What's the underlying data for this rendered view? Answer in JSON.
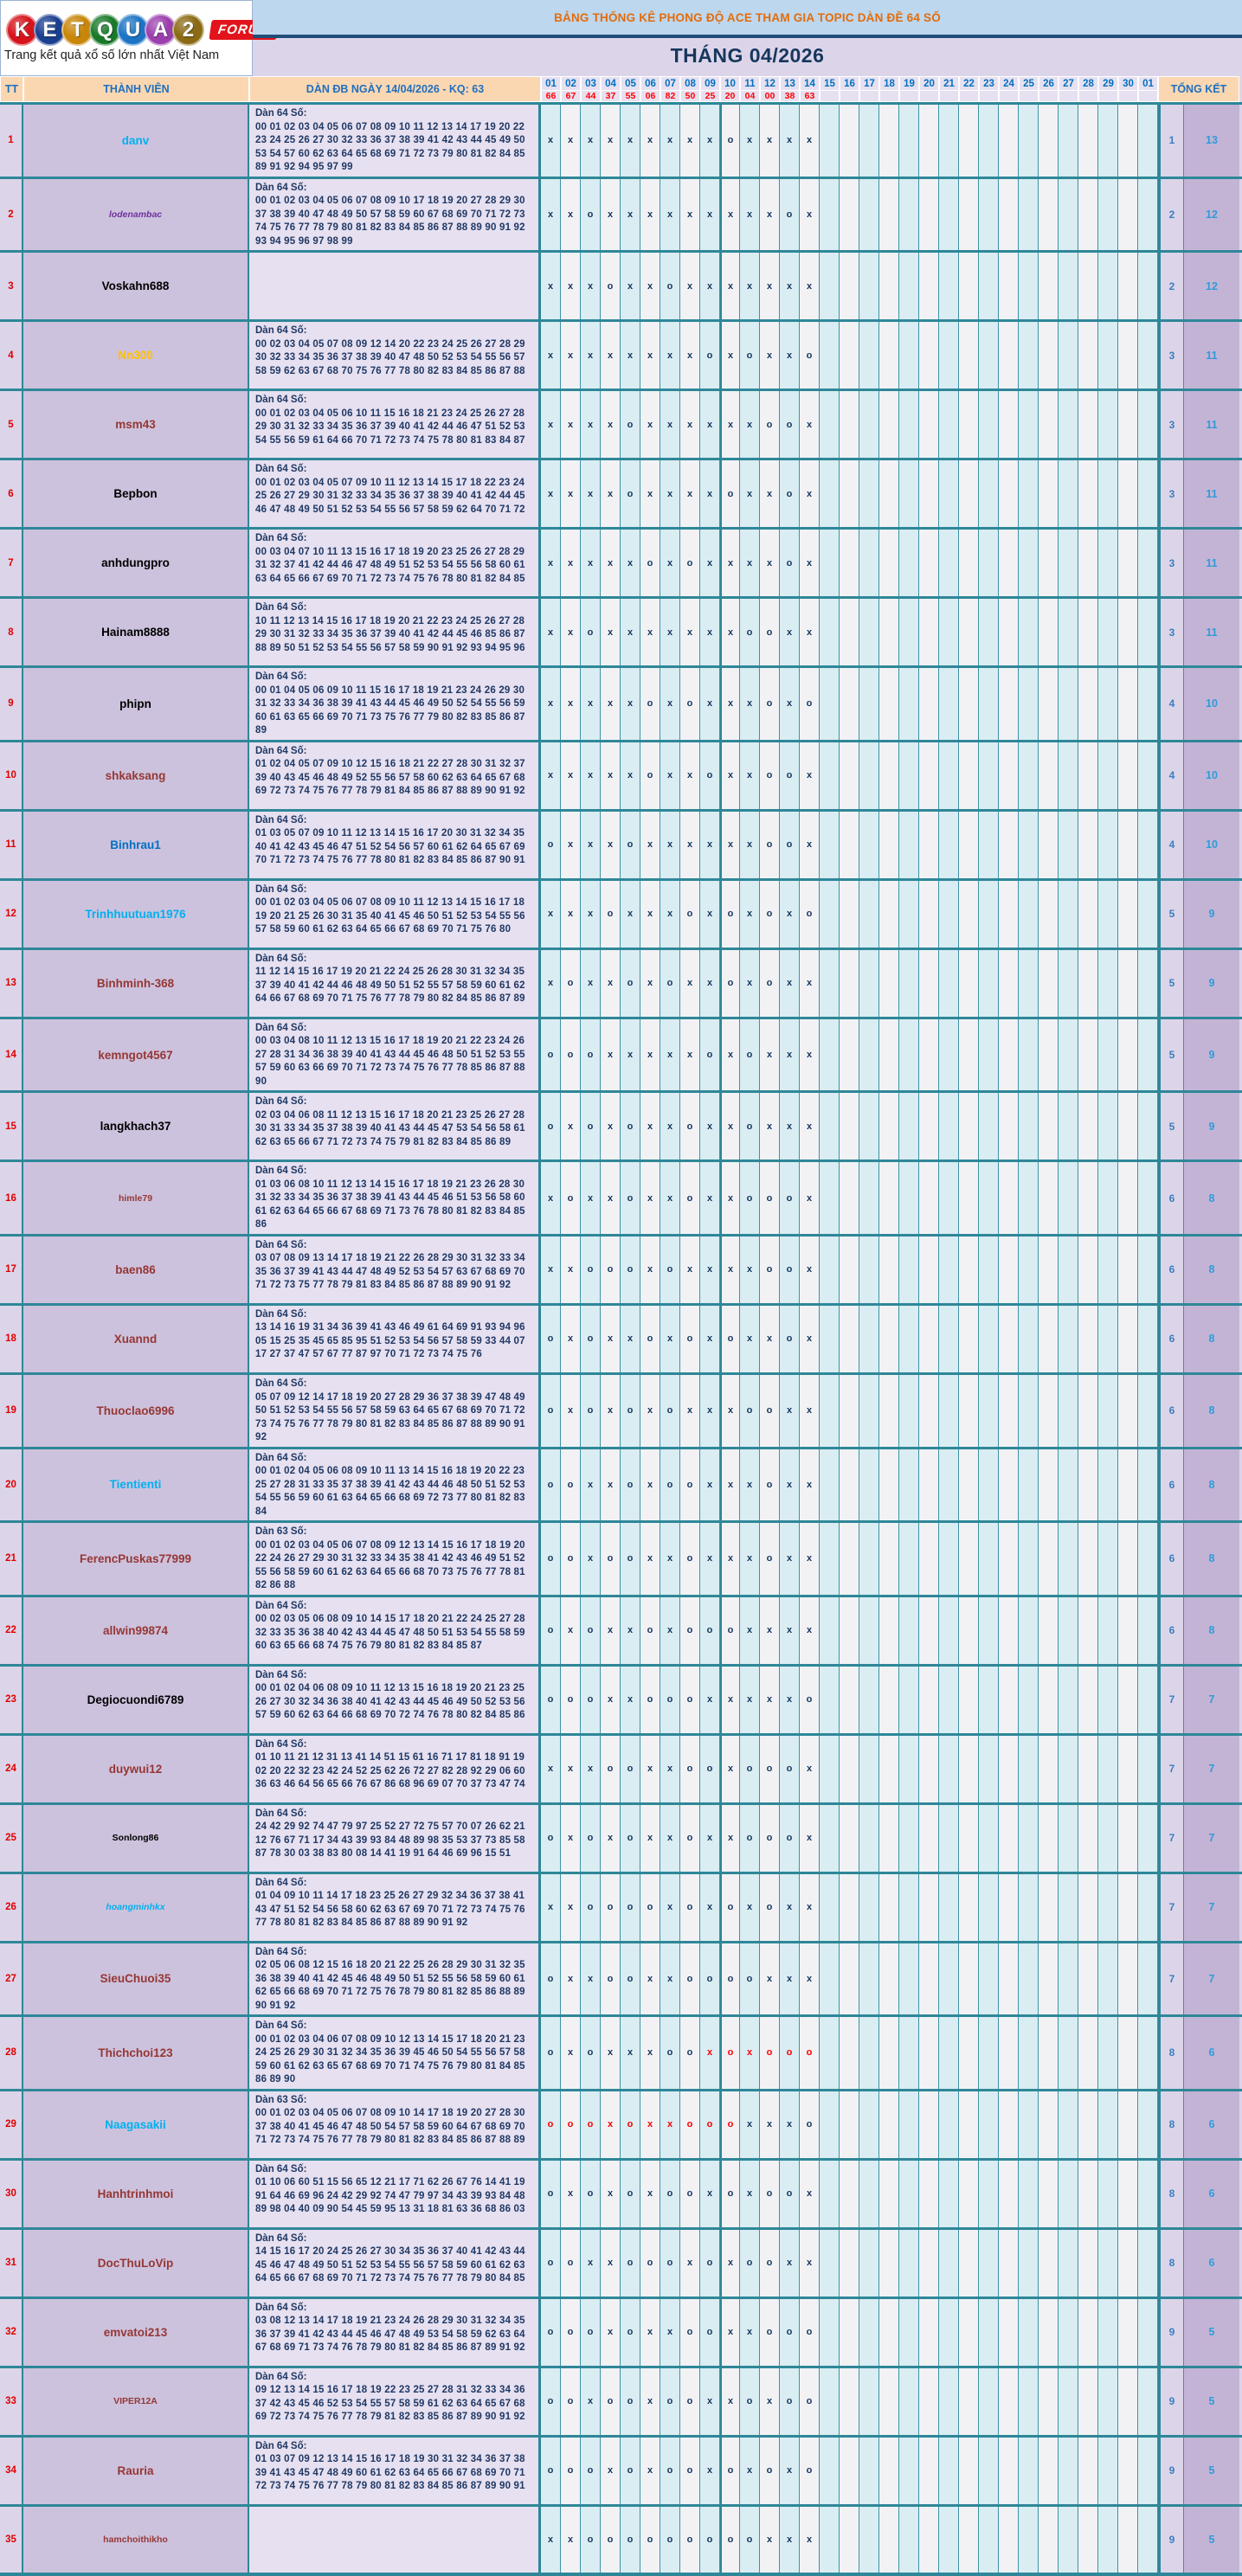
{
  "logo": {
    "letters": [
      {
        "ch": "K",
        "bg": "#d6131b"
      },
      {
        "ch": "E",
        "bg": "#1b3f8f"
      },
      {
        "ch": "T",
        "bg": "#c8860a"
      },
      {
        "ch": "Q",
        "bg": "#1a7a2a"
      },
      {
        "ch": "U",
        "bg": "#1d74c4"
      },
      {
        "ch": "A",
        "bg": "#9b3fae"
      },
      {
        "ch": "2",
        "bg": "#8a6a14"
      }
    ],
    "forum": "FORUM",
    "tagline": "Trang kết quả xổ số lớn nhất Việt Nam"
  },
  "header": {
    "title": "BẢNG THỐNG KÊ PHONG ĐỘ ACE THAM GIA TOPIC DÀN ĐỀ 64 SỐ",
    "month": "THÁNG 04/2026"
  },
  "table_header": {
    "tt": "TT",
    "member": "THÀNH VIÊN",
    "dan": "DÀN ĐB NGÀY 14/04/2026 - KQ: 63",
    "total": "TỔNG KẾT",
    "days": [
      "01",
      "02",
      "03",
      "04",
      "05",
      "06",
      "07",
      "08",
      "09",
      "10",
      "11",
      "12",
      "13",
      "14",
      "15",
      "16",
      "17",
      "18",
      "19",
      "20",
      "21",
      "22",
      "23",
      "24",
      "25",
      "26",
      "27",
      "28",
      "29",
      "30",
      "01"
    ],
    "results": [
      "66",
      "67",
      "44",
      "37",
      "55",
      "06",
      "82",
      "50",
      "25",
      "20",
      "04",
      "00",
      "38",
      "63"
    ]
  },
  "rows": [
    {
      "tt": "1",
      "name": "danv",
      "color": "#00b0f0",
      "size": "n",
      "italic": false,
      "label": "Dàn 64 Số:",
      "nums": "00 01 02 03 04 05 06 07 08 09 10 11 12 13 14 17 19 20 22 23 24 25 26 27 30 32 33 36 37 38 39 41 42 43 44 45 49 50 53 54 57 60 62 63 64 65 68 69 71 72 73 79 80 81 82 84 85 89 91 92 94 95 97 99",
      "marks": "xxxxxxxxxoxxxx",
      "miss": "1",
      "hit": "13"
    },
    {
      "tt": "2",
      "name": "lodenambac",
      "color": "#7030a0",
      "size": "s",
      "italic": true,
      "label": "Dàn 64 Số:",
      "nums": "00 01 02 03 04 05 06 07 08 09 10 17 18 19 20 27 28 29 30 37 38 39 40 47 48 49 50 57 58 59 60 67 68 69 70 71 72 73 74 75 76 77 78 79 80 81 82 83 84 85 86 87 88 89 90 91 92 93 94 95 96 97 98 99",
      "marks": "xxoxxxxxxxxxox",
      "miss": "2",
      "hit": "12"
    },
    {
      "tt": "3",
      "name": "Voskahn688",
      "color": "#000000",
      "size": "n",
      "italic": false,
      "label": "",
      "nums": "",
      "marks": "xxxoxxoxxxxxxx",
      "miss": "2",
      "hit": "12"
    },
    {
      "tt": "4",
      "name": "Nn300",
      "color": "#ffc000",
      "size": "n",
      "italic": false,
      "label": "Dàn 64 Số:",
      "nums": "00 02 03 04 05 07 08 09 12 14 20 22 23 24 25 26 27 28 29 30 32 33 34 35 36 37 38 39 40 47 48 50 52 53 54 55 56 57 58 59 62 63 67 68 70 75 76 77 78 80 82 83 84 85 86 87 88",
      "marks": "xxxxxxxxoxoxxo",
      "miss": "3",
      "hit": "11"
    },
    {
      "tt": "5",
      "name": "msm43",
      "color": "#953735",
      "size": "n",
      "italic": false,
      "label": "Dàn 64 Số:",
      "nums": "00 01 02 03 04 05 06 10 11 15 16 18 21 23 24 25 26 27 28 29 30 31 32 33 34 35 36 37 39 40 41 42 44 46 47 51 52 53 54 55 56 59 61 64 66 70 71 72 73 74 75 78 80 81 83 84 87",
      "marks": "xxxxoxxxxxxoox",
      "miss": "3",
      "hit": "11"
    },
    {
      "tt": "6",
      "name": "Bepbon",
      "color": "#000000",
      "size": "n",
      "italic": false,
      "label": "Dàn 64 Số:",
      "nums": "00 01 02 03 04 05 07 09 10 11 12 13 14 15 17 18 22 23 24 25 26 27 29 30 31 32 33 34 35 36 37 38 39 40 41 42 44 45 46 47 48 49 50 51 52 53 54 55 56 57 58 59 62 64 70 71 72",
      "marks": "xxxxoxxxxoxxox",
      "miss": "3",
      "hit": "11"
    },
    {
      "tt": "7",
      "name": "anhdungpro",
      "color": "#000000",
      "size": "n",
      "italic": false,
      "label": "Dàn 64 Số:",
      "nums": "00 03 04 07 10 11 13 15 16 17 18 19 20 23 25 26 27 28 29 31 32 37 41 42 44 46 47 48 49 51 52 53 54 55 56 58 60 61 63 64 65 66 67 69 70 71 72 73 74 75 76 78 80 81 82 84 85",
      "marks": "xxxxxoxoxxxxox",
      "miss": "3",
      "hit": "11"
    },
    {
      "tt": "8",
      "name": "Hainam8888",
      "color": "#000000",
      "size": "n",
      "italic": false,
      "label": "Dàn 64 Số:",
      "nums": "10 11 12 13 14 15 16 17 18 19 20 21 22 23 24 25 26 27 28 29 30 31 32 33 34 35 36 37 39 40 41 42 44 45 46 85 86 87 88 89 50 51 52 53 54 55 56 57 58 59 90 91 92 93 94 95 96",
      "marks": "xxoxxxxxxxooxx",
      "miss": "3",
      "hit": "11"
    },
    {
      "tt": "9",
      "name": "phipn",
      "color": "#000000",
      "size": "n",
      "italic": false,
      "label": "Dàn 64 Số:",
      "nums": "00 01 04 05 06 09 10 11 15 16 17 18 19 21 23 24 26 29 30 31 32 33 34 36 38 39 41 43 44 45 46 49 50 52 54 55 56 59 60 61 63 65 66 69 70 71 73 75 76 77 79 80 82 83 85 86 87 89",
      "marks": "xxxxxoxoxxxoxo",
      "miss": "4",
      "hit": "10"
    },
    {
      "tt": "10",
      "name": "shkaksang",
      "color": "#953735",
      "size": "n",
      "italic": false,
      "label": "Dàn 64 Số:",
      "nums": "01 02 04 05 07 09 10 12 15 16 18 21 22 27 28 30 31 32 37 39 40 43 45 46 48 49 52 55 56 57 58 60 62 63 64 65 67 68 69 72 73 74 75 76 77 78 79 81 84 85 86 87 88 89 90 91 92",
      "marks": "xxxxxoxxoxxoox",
      "miss": "4",
      "hit": "10"
    },
    {
      "tt": "11",
      "name": "Binhrau1",
      "color": "#0070c0",
      "size": "n",
      "italic": false,
      "label": "Dàn 64 Số:",
      "nums": "01 03 05 07 09 10 11 12 13 14 15 16 17 20 30 31 32 34 35 40 41 42 43 45 46 47 51 52 54 56 57 60 61 62 64 65 67 69 70 71 72 73 74 75 76 77 78 80 81 82 83 84 85 86 87 90 91",
      "marks": "oxxxoxxxxxxoox",
      "miss": "4",
      "hit": "10"
    },
    {
      "tt": "12",
      "name": "Trinhhuutuan1976",
      "color": "#00b0f0",
      "size": "n",
      "italic": false,
      "label": "Dàn 64 Số:",
      "nums": "00 01 02 03 04 05 06 07 08 09 10 11 12 13 14 15 16 17 18 19 20 21 25 26 30 31 35 40 41 45 46 50 51 52 53 54 55 56 57 58 59 60 61 62 63 64 65 66 67 68 69 70 71 75 76 80",
      "marks": "xxxoxxxoxoxoxo",
      "miss": "5",
      "hit": "9"
    },
    {
      "tt": "13",
      "name": "Binhminh-368",
      "color": "#953735",
      "size": "n",
      "italic": false,
      "label": "Dàn 64 Số:",
      "nums": "11 12 14 15 16 17 19 20 21 22 24 25 26 28 30 31 32 34 35 37 39 40 41 42 44 46 48 49 50 51 52 55 57 58 59 60 61 62 64 66 67 68 69 70 71 75 76 77 78 79 80 82 84 85 86 87 89",
      "marks": "xoxxoxoxxoxoxx",
      "miss": "5",
      "hit": "9"
    },
    {
      "tt": "14",
      "name": "kemngot4567",
      "color": "#953735",
      "size": "n",
      "italic": false,
      "label": "Dàn 64 Số:",
      "nums": "00 03 04 08 10 11 12 13 15 16 17 18 19 20 21 22 23 24 26 27 28 31 34 36 38 39 40 41 43 44 45 46 48 50 51 52 53 55 57 59 60 63 66 69 70 71 72 73 74 75 76 77 78 85 86 87 88 90",
      "marks": "oooxxxxxoxoxxx",
      "miss": "5",
      "hit": "9"
    },
    {
      "tt": "15",
      "name": "langkhach37",
      "color": "#000000",
      "size": "n",
      "italic": false,
      "label": "Dàn 64 Số:",
      "nums": "02 03 04 06 08 11 12 13 15 16 17 18 20 21 23 25 26 27 28 30 31 33 34 35 37 38 39 40 41 43 44 45 47 53 54 56 58 61 62 63 65 66 67 71 72 73 74 75 79 81 82 83 84 85 86 89",
      "marks": "oxoxoxxoxxoxxx",
      "miss": "5",
      "hit": "9"
    },
    {
      "tt": "16",
      "name": "himle79",
      "color": "#953735",
      "size": "s",
      "italic": false,
      "label": "Dàn 64 Số:",
      "nums": "01 03 06 08 10 11 12 13 14 15 16 17 18 19 21 23 26 28 30 31 32 33 34 35 36 37 38 39 41 43 44 45 46 51 53 56 58 60 61 62 63 64 65 66 67 68 69 71 73 76 78 80 81 82 83 84 85 86",
      "marks": "xoxxoxxoxxooox",
      "miss": "6",
      "hit": "8"
    },
    {
      "tt": "17",
      "name": "baen86",
      "color": "#953735",
      "size": "n",
      "italic": false,
      "label": "Dàn 64 Số:",
      "nums": "03 07 08 09 13 14 17 18 19 21 22 26 28 29 30 31 32 33 34 35 36 37 39 41 43 44 47 48 49 52 53 54 57 63 67 68 69 70 71 72 73 75 77 78 79 81 83 84 85 86 87 88 89 90 91 92",
      "marks": "xxoooxoxxxxoox",
      "miss": "6",
      "hit": "8"
    },
    {
      "tt": "18",
      "name": "Xuannd",
      "color": "#953735",
      "size": "n",
      "italic": false,
      "label": "Dàn 64 Số:",
      "nums": "13 14 16 19 31 34 36 39 41 43 46 49 61 64 69 91 93 94 96 05 15 25 35 45 65 85 95 51 52 53 54 56 57 58 59 33 44 07 17 27 37 47 57 67 77 87 97 70 71 72 73 74 75 76",
      "marks": "oxoxxoxoxoxxox",
      "miss": "6",
      "hit": "8"
    },
    {
      "tt": "19",
      "name": "Thuoclao6996",
      "color": "#953735",
      "size": "n",
      "italic": false,
      "label": "Dàn 64 Số:",
      "nums": "05 07 09 12 14 17 18 19 20 27 28 29 36 37 38 39 47 48 49 50 51 52 53 54 55 56 57 58 59 63 64 65 67 68 69 70 71 72 73 74 75 76 77 78 79 80 81 82 83 84 85 86 87 88 89 90 91 92",
      "marks": "oxoxoxoxxxooxx",
      "miss": "6",
      "hit": "8"
    },
    {
      "tt": "20",
      "name": "Tientienti",
      "color": "#00b0f0",
      "size": "n",
      "italic": false,
      "label": "Dàn 64 Số:",
      "nums": "00 01 02 04 05 06 08 09 10 11 13 14 15 16 18 19 20 22 23 25 27 28 31 33 35 37 38 39 41 42 43 44 46 48 50 51 52 53 54 55 56 59 60 61 63 64 65 66 68 69 72 73 77 80 81 82 83 84",
      "marks": "ooxxoxooxxxoxx",
      "miss": "6",
      "hit": "8"
    },
    {
      "tt": "21",
      "name": "FerencPuskas77999",
      "color": "#953735",
      "size": "n",
      "italic": false,
      "label": "Dàn 63 Số:",
      "nums": "00 01 02 03 04 05 06 07 08 09 12 13 14 15 16 17 18 19 20 22 24 26 27 29 30 31 32 33 34 35 38 41 42 43 46 49 51 52 55 56 58 59 60 61 62 63 64 65 66 68 70 73 75 76 77 78 81 82 86 88",
      "marks": "ooxooxxoxxxoxx",
      "miss": "6",
      "hit": "8"
    },
    {
      "tt": "22",
      "name": "allwin99874",
      "color": "#953735",
      "size": "n",
      "italic": false,
      "label": "Dàn 64 Số:",
      "nums": "00 02 03 05 06 08 09 10 14 15 17 18 20 21 22 24 25 27 28 32 33 35 36 38 40 42 43 44 45 47 48 50 51 53 54 55 58 59 60 63 65 66 68 74 75 76 79 80 81 82 83 84 85 87",
      "marks": "oxoxxoxoooxxxx",
      "miss": "6",
      "hit": "8"
    },
    {
      "tt": "23",
      "name": "Degiocuondi6789",
      "color": "#000000",
      "size": "n",
      "italic": false,
      "label": "Dàn 64 Số:",
      "nums": "00 01 02 04 06 08 09 10 11 12 13 15 16 18 19 20 21 23 25 26 27 30 32 34 36 38 40 41 42 43 44 45 46 49 50 52 53 56 57 59 60 62 63 64 66 68 69 70 72 74 76 78 80 82 84 85 86",
      "marks": "oooxxoooxxxxxo",
      "miss": "7",
      "hit": "7"
    },
    {
      "tt": "24",
      "name": "duywui12",
      "color": "#953735",
      "size": "n",
      "italic": false,
      "label": "Dàn 64 Số:",
      "nums": "01 10 11 21 12 31 13 41 14 51 15 61 16 71 17 81 18 91 19 02 20 22 32 23 42 24 52 25 62 26 72 27 82 28 92 29 06 60 36 63 46 64 56 65 66 76 67 86 68 96 69 07 70 37 73 47 74",
      "marks": "xxxooxxooxooox",
      "miss": "7",
      "hit": "7"
    },
    {
      "tt": "25",
      "name": "Sonlong86",
      "color": "#000000",
      "size": "s",
      "italic": false,
      "label": "Dàn 64 Số:",
      "nums": "24 42 29 92 74 47 79 97 25 52 27 72 75 57 70 07 26 62 21 12 76 67 71 17 34 43 39 93 84 48 89 98 35 53 37 73 85 58 87 78 30 03 38 83 80 08 14 41 19 91 64 46 69 96 15 51",
      "marks": "oxoxoxxoxxooox",
      "miss": "7",
      "hit": "7"
    },
    {
      "tt": "26",
      "name": "hoangminhkx",
      "color": "#00b0f0",
      "size": "s",
      "italic": true,
      "label": "Dàn 64 Số:",
      "nums": "01 04 09 10 11 14 17 18 23 25 26 27 29 32 34 36 37 38 41 43 47 51 52 54 56 58 60 62 63 67 69 70 71 72 73 74 75 76 77 78 80 81 82 83 84 85 86 87 88 89 90 91 92",
      "marks": "xxooooxoxoxoxx",
      "miss": "7",
      "hit": "7"
    },
    {
      "tt": "27",
      "name": "SieuChuoi35",
      "color": "#953735",
      "size": "n",
      "italic": false,
      "label": "Dàn 64 Số:",
      "nums": "02 05 06 08 12 15 16 18 20 21 22 25 26 28 29 30 31 32 35 36 38 39 40 41 42 45 46 48 49 50 51 52 55 56 58 59 60 61 62 65 66 68 69 70 71 72 75 76 78 79 80 81 82 85 86 88 89 90 91 92",
      "marks": "oxxooxxooooxxx",
      "miss": "7",
      "hit": "7"
    },
    {
      "tt": "28",
      "name": "Thichchoi123",
      "color": "#953735",
      "size": "n",
      "italic": false,
      "label": "Dàn 64 Số:",
      "nums": "00 01 02 03 04 06 07 08 09 10 12 13 14 15 17 18 20 21 23 24 25 26 29 30 31 32 34 35 36 39 45 46 50 54 55 56 57 58 59 60 61 62 63 65 67 68 69 70 71 74 75 76 79 80 81 84 85 86 89 90",
      "marks": "oxoxxxooxoxooo",
      "red_from": 8,
      "red_to": 13,
      "miss": "8",
      "hit": "6"
    },
    {
      "tt": "29",
      "name": "Naagasakii",
      "color": "#00b0f0",
      "size": "n",
      "italic": false,
      "label": "Dàn 63 Số:",
      "nums": "00 01 02 03 04 05 06 07 08 09 10 14 17 18 19 20 27 28 30 37 38 40 41 45 46 47 48 50 54 57 58 59 60 64 67 68 69 70 71 72 73 74 75 76 77 78 79 80 81 82 83 84 85 86 87 88 89",
      "marks": "oooxoxxoooxxxo",
      "red_from": 0,
      "red_to": 9,
      "miss": "8",
      "hit": "6"
    },
    {
      "tt": "30",
      "name": "Hanhtrinhmoi",
      "color": "#953735",
      "size": "n",
      "italic": false,
      "label": "Dàn 64 Số:",
      "nums": "01 10 06 60 51 15 56 65 12 21 17 71 62 26 67 76 14 41 19 91 64 46 69 96 24 42 29 92 74 47 79 97 34 43 39 93 84 48 89 98 04 40 09 90 54 45 59 95 13 31 18 81 63 36 68 86 03",
      "marks": "oxoxoxooxoxoox",
      "miss": "8",
      "hit": "6"
    },
    {
      "tt": "31",
      "name": "DocThuLoVip",
      "color": "#953735",
      "size": "n",
      "italic": false,
      "label": "Dàn 64 Số:",
      "nums": "14 15 16 17 20 24 25 26 27 30 34 35 36 37 40 41 42 43 44 45 46 47 48 49 50 51 52 53 54 55 56 57 58 59 60 61 62 63 64 65 66 67 68 69 70 71 72 73 74 75 76 77 78 79 80 84 85",
      "marks": "ooxxoooxoxooxx",
      "miss": "8",
      "hit": "6"
    },
    {
      "tt": "32",
      "name": "emvatoi213",
      "color": "#953735",
      "size": "n",
      "italic": false,
      "label": "Dàn 64 Số:",
      "nums": "03 08 12 13 14 17 18 19 21 23 24 26 28 29 30 31 32 34 35 36 37 39 41 42 43 44 45 46 47 48 49 53 54 58 59 62 63 64 67 68 69 71 73 74 76 78 79 80 81 82 84 85 86 87 89 91 92",
      "marks": "oooxoxxooxxooo",
      "miss": "9",
      "hit": "5"
    },
    {
      "tt": "33",
      "name": "VIPER12A",
      "color": "#953735",
      "size": "s",
      "italic": false,
      "label": "Dàn 64 Số:",
      "nums": "09 12 13 14 15 16 17 18 19 22 23 25 27 28 31 32 33 34 36 37 42 43 45 46 52 53 54 55 57 58 59 61 62 63 64 65 67 68 69 72 73 74 75 76 77 78 79 81 82 83 85 86 87 89 90 91 92",
      "marks": "ooxooxooxxoxoo",
      "miss": "9",
      "hit": "5"
    },
    {
      "tt": "34",
      "name": "Rauria",
      "color": "#953735",
      "size": "n",
      "italic": false,
      "label": "Dàn 64 Số:",
      "nums": "01 03 07 09 12 13 14 15 16 17 18 19 30 31 32 34 36 37 38 39 41 43 45 47 48 49 60 61 62 63 64 65 66 67 68 69 70 71 72 73 74 75 76 77 78 79 80 81 82 83 84 85 86 87 89 90 91",
      "marks": "oooxoxooxoxoxo",
      "miss": "9",
      "hit": "5"
    },
    {
      "tt": "35",
      "name": "hamchoithikho",
      "color": "#953735",
      "size": "s",
      "italic": false,
      "label": "",
      "nums": "",
      "marks": "xxoooooooooxxx",
      "miss": "9",
      "hit": "5"
    }
  ]
}
